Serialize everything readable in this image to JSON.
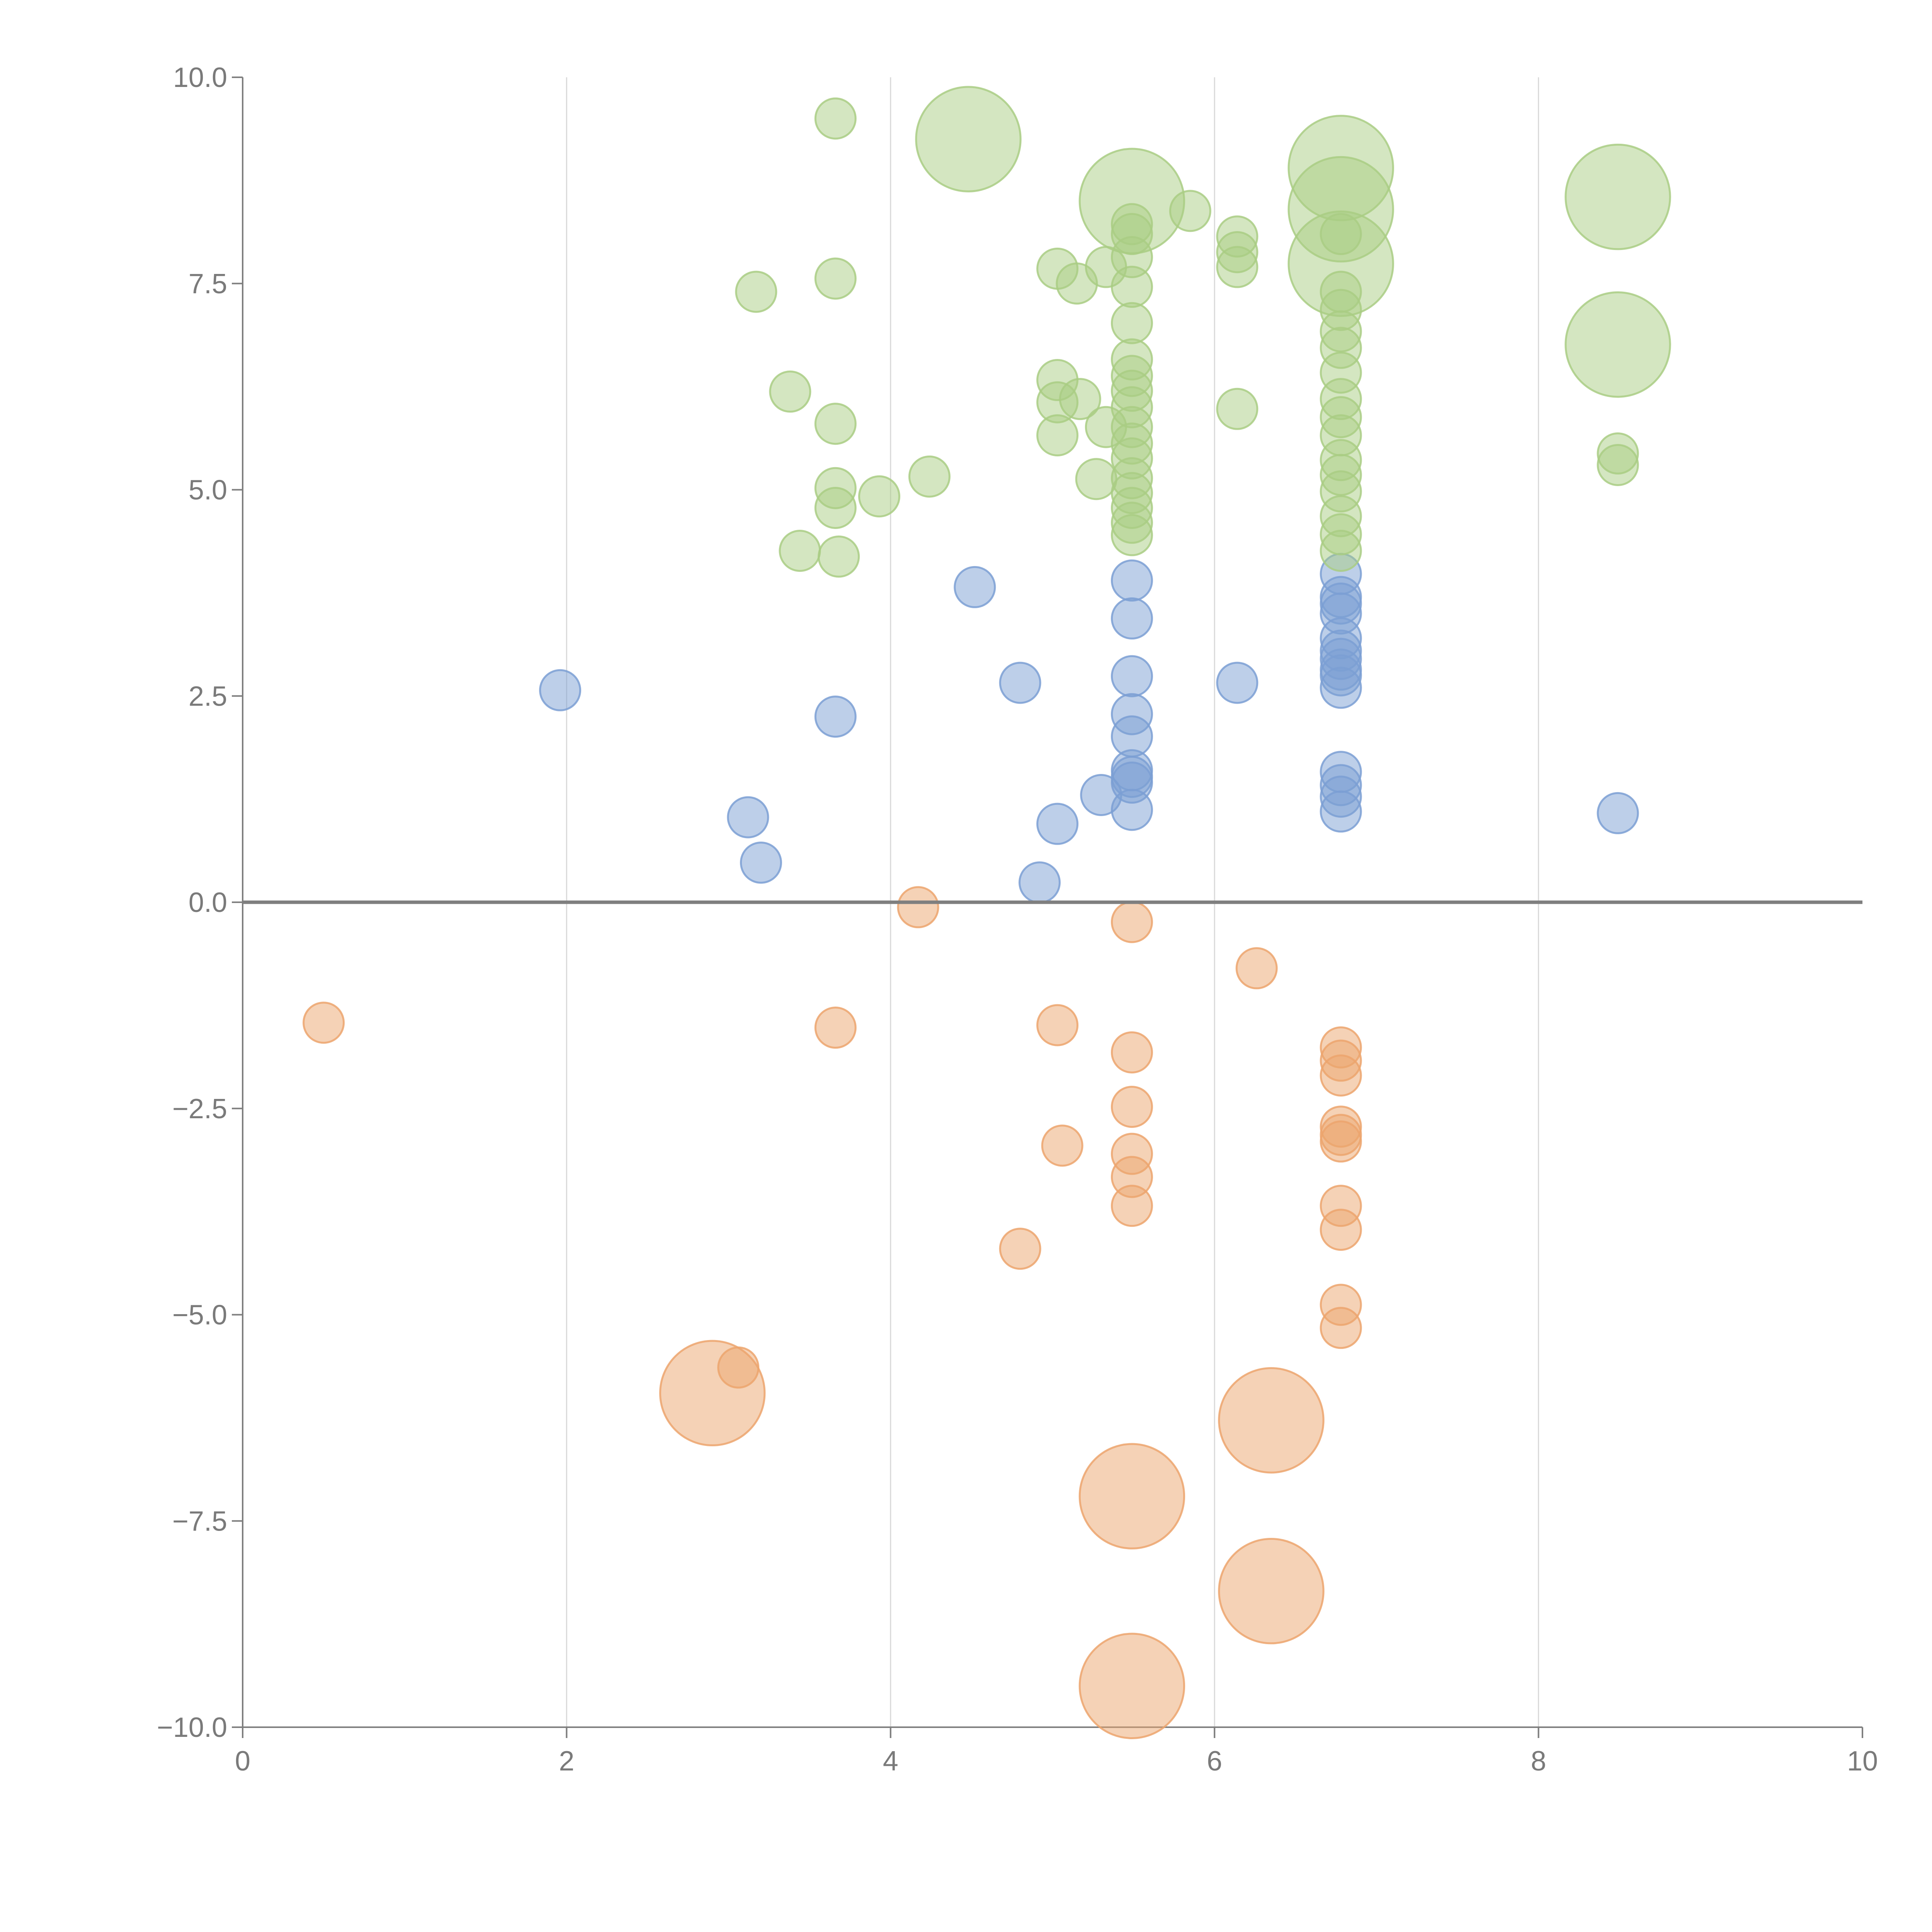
{
  "colors": {
    "blue": "#7b9fd4",
    "green": "#a9cd84",
    "orange": "#eca56d",
    "axis": "#7f7f7f",
    "grid": "#d9d9d9",
    "label": "#7a7a7a"
  },
  "chart_data": {
    "type": "scatter",
    "title": "",
    "xlabel": "",
    "ylabel": "",
    "xlim": [
      0,
      10
    ],
    "ylim": [
      -10,
      10
    ],
    "x_ticks": [
      0,
      2,
      4,
      6,
      8,
      10
    ],
    "x_tick_labels": [
      "0",
      "2",
      "4",
      "6",
      "8",
      "10"
    ],
    "y_ticks": [
      10,
      7.5,
      5,
      2.5,
      0,
      -2.5,
      -5,
      -7.5,
      -10
    ],
    "y_tick_labels": [
      "10.0",
      "7.5",
      "5.0",
      "2.5",
      "0.0",
      "−2.5",
      "−5.0",
      "−7.5",
      "−10.0"
    ],
    "grid": "vertical",
    "reference_line_y": 0,
    "series": [
      {
        "name": "blue",
        "color": "#7b9fd4",
        "points": [
          {
            "x": 1.96,
            "y": 2.57,
            "size": 1
          },
          {
            "x": 3.12,
            "y": 1.03,
            "size": 1
          },
          {
            "x": 3.2,
            "y": 0.48,
            "size": 1
          },
          {
            "x": 3.66,
            "y": 2.25,
            "size": 1
          },
          {
            "x": 4.52,
            "y": 3.82,
            "size": 1
          },
          {
            "x": 4.8,
            "y": 2.66,
            "size": 1
          },
          {
            "x": 4.92,
            "y": 0.24,
            "size": 1
          },
          {
            "x": 5.03,
            "y": 0.95,
            "size": 1
          },
          {
            "x": 5.3,
            "y": 1.3,
            "size": 1
          },
          {
            "x": 5.49,
            "y": 3.9,
            "size": 1
          },
          {
            "x": 5.49,
            "y": 3.44,
            "size": 1
          },
          {
            "x": 5.49,
            "y": 2.74,
            "size": 1
          },
          {
            "x": 5.49,
            "y": 2.28,
            "size": 1
          },
          {
            "x": 5.49,
            "y": 2.01,
            "size": 1
          },
          {
            "x": 5.49,
            "y": 1.6,
            "size": 1
          },
          {
            "x": 5.49,
            "y": 1.52,
            "size": 1
          },
          {
            "x": 5.49,
            "y": 1.45,
            "size": 1
          },
          {
            "x": 5.49,
            "y": 1.12,
            "size": 1
          },
          {
            "x": 6.14,
            "y": 2.66,
            "size": 1
          },
          {
            "x": 6.78,
            "y": 3.98,
            "size": 1
          },
          {
            "x": 6.78,
            "y": 3.7,
            "size": 1
          },
          {
            "x": 6.78,
            "y": 3.62,
            "size": 1
          },
          {
            "x": 6.78,
            "y": 3.5,
            "size": 1
          },
          {
            "x": 6.78,
            "y": 3.2,
            "size": 1
          },
          {
            "x": 6.78,
            "y": 3.05,
            "size": 1
          },
          {
            "x": 6.78,
            "y": 2.95,
            "size": 1
          },
          {
            "x": 6.78,
            "y": 2.82,
            "size": 1
          },
          {
            "x": 6.78,
            "y": 2.75,
            "size": 1
          },
          {
            "x": 6.78,
            "y": 2.6,
            "size": 1
          },
          {
            "x": 6.78,
            "y": 1.58,
            "size": 1
          },
          {
            "x": 6.78,
            "y": 1.42,
            "size": 1
          },
          {
            "x": 6.78,
            "y": 1.28,
            "size": 1
          },
          {
            "x": 6.78,
            "y": 1.1,
            "size": 1
          },
          {
            "x": 8.49,
            "y": 1.08,
            "size": 1
          }
        ]
      },
      {
        "name": "green",
        "color": "#a9cd84",
        "points": [
          {
            "x": 3.66,
            "y": 9.5,
            "size": 1
          },
          {
            "x": 4.48,
            "y": 9.25,
            "size": 2.6
          },
          {
            "x": 3.17,
            "y": 7.4,
            "size": 1
          },
          {
            "x": 3.66,
            "y": 7.56,
            "size": 1
          },
          {
            "x": 3.38,
            "y": 6.19,
            "size": 1
          },
          {
            "x": 3.66,
            "y": 5.8,
            "size": 1
          },
          {
            "x": 3.66,
            "y": 5.02,
            "size": 1
          },
          {
            "x": 3.66,
            "y": 4.78,
            "size": 1
          },
          {
            "x": 3.44,
            "y": 4.26,
            "size": 1
          },
          {
            "x": 3.68,
            "y": 4.19,
            "size": 1
          },
          {
            "x": 3.93,
            "y": 4.92,
            "size": 1
          },
          {
            "x": 4.24,
            "y": 5.16,
            "size": 1
          },
          {
            "x": 5.03,
            "y": 7.68,
            "size": 1
          },
          {
            "x": 5.15,
            "y": 7.5,
            "size": 1
          },
          {
            "x": 5.33,
            "y": 7.7,
            "size": 1
          },
          {
            "x": 5.03,
            "y": 6.33,
            "size": 1
          },
          {
            "x": 5.03,
            "y": 6.06,
            "size": 1
          },
          {
            "x": 5.17,
            "y": 6.1,
            "size": 1
          },
          {
            "x": 5.03,
            "y": 5.66,
            "size": 1
          },
          {
            "x": 5.33,
            "y": 5.76,
            "size": 1
          },
          {
            "x": 5.27,
            "y": 5.13,
            "size": 1
          },
          {
            "x": 5.49,
            "y": 8.5,
            "size": 2.6
          },
          {
            "x": 5.49,
            "y": 8.22,
            "size": 1
          },
          {
            "x": 5.49,
            "y": 8.1,
            "size": 1
          },
          {
            "x": 5.49,
            "y": 7.82,
            "size": 1
          },
          {
            "x": 5.49,
            "y": 7.46,
            "size": 1
          },
          {
            "x": 5.49,
            "y": 7.02,
            "size": 1
          },
          {
            "x": 5.49,
            "y": 6.58,
            "size": 1
          },
          {
            "x": 5.49,
            "y": 6.38,
            "size": 1
          },
          {
            "x": 5.49,
            "y": 6.2,
            "size": 1
          },
          {
            "x": 5.49,
            "y": 6.0,
            "size": 1
          },
          {
            "x": 5.49,
            "y": 5.76,
            "size": 1
          },
          {
            "x": 5.49,
            "y": 5.56,
            "size": 1
          },
          {
            "x": 5.49,
            "y": 5.38,
            "size": 1
          },
          {
            "x": 5.49,
            "y": 5.14,
            "size": 1
          },
          {
            "x": 5.49,
            "y": 4.96,
            "size": 1
          },
          {
            "x": 5.49,
            "y": 4.78,
            "size": 1
          },
          {
            "x": 5.49,
            "y": 4.6,
            "size": 1
          },
          {
            "x": 5.49,
            "y": 4.45,
            "size": 1
          },
          {
            "x": 5.85,
            "y": 8.38,
            "size": 1
          },
          {
            "x": 6.14,
            "y": 8.07,
            "size": 1
          },
          {
            "x": 6.14,
            "y": 7.88,
            "size": 1
          },
          {
            "x": 6.14,
            "y": 7.7,
            "size": 1
          },
          {
            "x": 6.14,
            "y": 5.98,
            "size": 1
          },
          {
            "x": 6.78,
            "y": 8.9,
            "size": 2.6
          },
          {
            "x": 6.78,
            "y": 8.4,
            "size": 2.6
          },
          {
            "x": 6.78,
            "y": 7.74,
            "size": 2.6
          },
          {
            "x": 6.78,
            "y": 8.1,
            "size": 1
          },
          {
            "x": 6.78,
            "y": 7.4,
            "size": 1
          },
          {
            "x": 6.78,
            "y": 7.18,
            "size": 1
          },
          {
            "x": 6.78,
            "y": 6.92,
            "size": 1
          },
          {
            "x": 6.78,
            "y": 6.72,
            "size": 1
          },
          {
            "x": 6.78,
            "y": 6.42,
            "size": 1
          },
          {
            "x": 6.78,
            "y": 6.1,
            "size": 1
          },
          {
            "x": 6.78,
            "y": 5.88,
            "size": 1
          },
          {
            "x": 6.78,
            "y": 5.66,
            "size": 1
          },
          {
            "x": 6.78,
            "y": 5.36,
            "size": 1
          },
          {
            "x": 6.78,
            "y": 5.18,
            "size": 1
          },
          {
            "x": 6.78,
            "y": 4.98,
            "size": 1
          },
          {
            "x": 6.78,
            "y": 4.68,
            "size": 1
          },
          {
            "x": 6.78,
            "y": 4.46,
            "size": 1
          },
          {
            "x": 6.78,
            "y": 4.26,
            "size": 1
          },
          {
            "x": 8.49,
            "y": 8.55,
            "size": 2.6
          },
          {
            "x": 8.49,
            "y": 6.76,
            "size": 2.6
          },
          {
            "x": 8.49,
            "y": 5.44,
            "size": 1
          },
          {
            "x": 8.49,
            "y": 5.3,
            "size": 1
          }
        ]
      },
      {
        "name": "orange",
        "color": "#eca56d",
        "points": [
          {
            "x": 0.5,
            "y": -1.46,
            "size": 1
          },
          {
            "x": 3.66,
            "y": -1.52,
            "size": 1
          },
          {
            "x": 4.17,
            "y": -0.06,
            "size": 1
          },
          {
            "x": 5.03,
            "y": -1.49,
            "size": 1
          },
          {
            "x": 5.06,
            "y": -2.95,
            "size": 1
          },
          {
            "x": 4.8,
            "y": -4.2,
            "size": 1
          },
          {
            "x": 5.49,
            "y": -0.24,
            "size": 1
          },
          {
            "x": 5.49,
            "y": -1.82,
            "size": 1
          },
          {
            "x": 5.49,
            "y": -2.48,
            "size": 1
          },
          {
            "x": 5.49,
            "y": -3.05,
            "size": 1
          },
          {
            "x": 5.49,
            "y": -3.33,
            "size": 1
          },
          {
            "x": 5.49,
            "y": -3.68,
            "size": 1
          },
          {
            "x": 6.26,
            "y": -0.8,
            "size": 1
          },
          {
            "x": 6.78,
            "y": -1.76,
            "size": 1
          },
          {
            "x": 6.78,
            "y": -1.92,
            "size": 1
          },
          {
            "x": 6.78,
            "y": -2.1,
            "size": 1
          },
          {
            "x": 6.78,
            "y": -2.72,
            "size": 1
          },
          {
            "x": 6.78,
            "y": -2.82,
            "size": 1
          },
          {
            "x": 6.78,
            "y": -2.9,
            "size": 1
          },
          {
            "x": 6.78,
            "y": -3.68,
            "size": 1
          },
          {
            "x": 6.78,
            "y": -3.97,
            "size": 1
          },
          {
            "x": 6.78,
            "y": -4.88,
            "size": 1
          },
          {
            "x": 6.78,
            "y": -5.16,
            "size": 1
          },
          {
            "x": 3.06,
            "y": -5.64,
            "size": 1
          },
          {
            "x": 2.9,
            "y": -5.95,
            "size": 2.6
          },
          {
            "x": 6.35,
            "y": -6.28,
            "size": 2.6
          },
          {
            "x": 5.49,
            "y": -7.2,
            "size": 2.6
          },
          {
            "x": 6.35,
            "y": -8.35,
            "size": 2.6
          },
          {
            "x": 5.49,
            "y": -9.5,
            "size": 2.6
          }
        ]
      }
    ]
  }
}
